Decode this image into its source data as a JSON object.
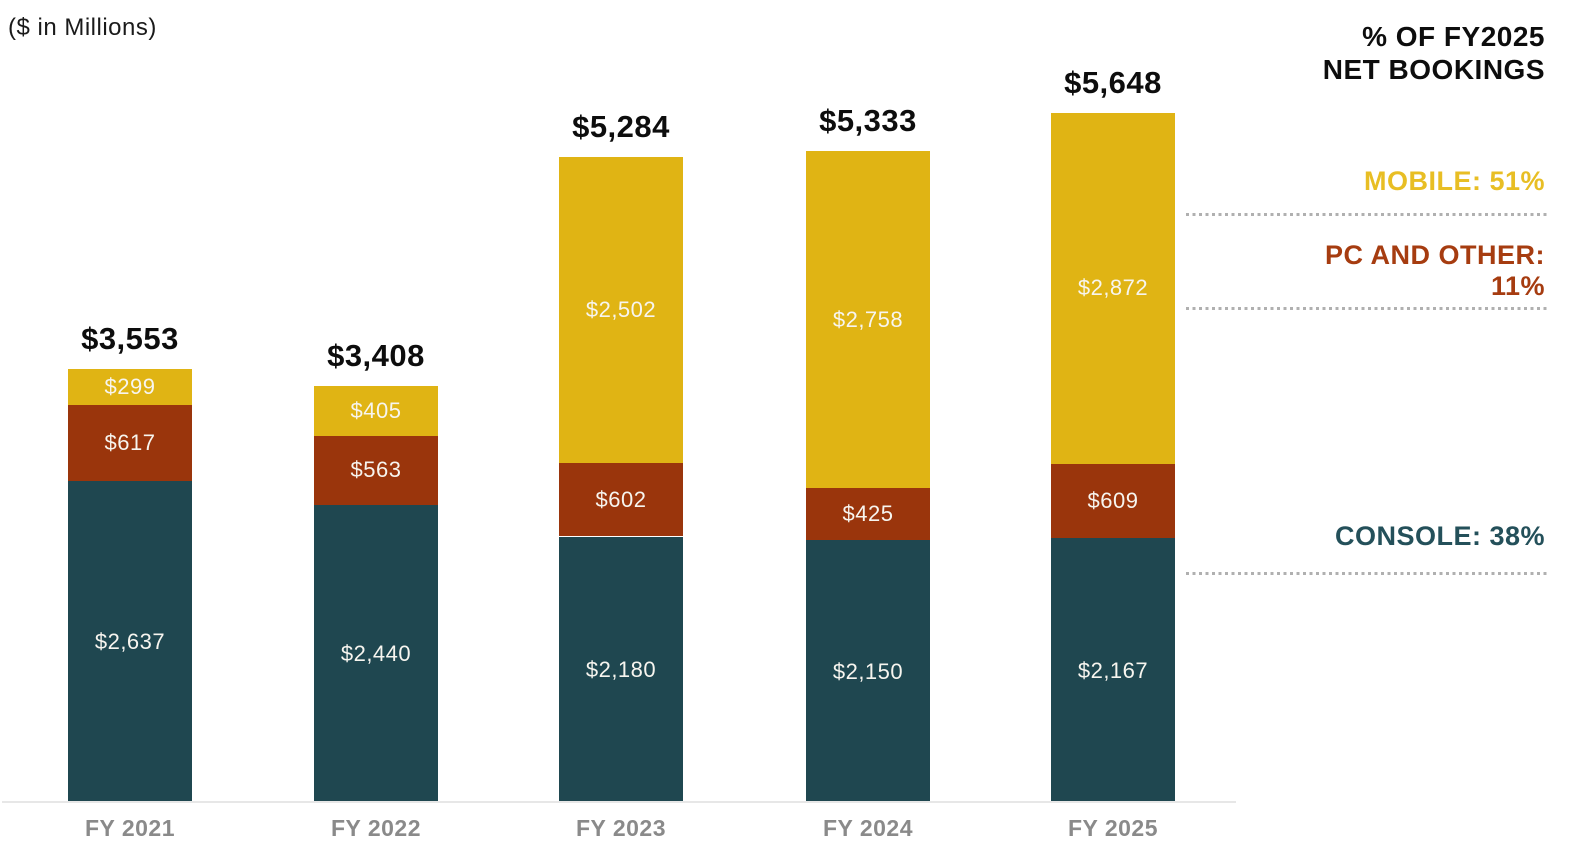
{
  "note": "($ in Millions)",
  "legend": {
    "title_line1": "% OF FY2025",
    "title_line2": "NET BOOKINGS",
    "items": [
      {
        "id": "mobile",
        "label": "MOBILE: 51%",
        "color": "#e8be24"
      },
      {
        "id": "pc",
        "label": "PC AND OTHER: 11%",
        "color": "#a63c10"
      },
      {
        "id": "console",
        "label": "CONSOLE: 38%",
        "color": "#24505a"
      }
    ]
  },
  "chart_data": {
    "type": "bar",
    "stacked": true,
    "title": "($ in Millions)",
    "unit": "USD millions",
    "value_prefix": "$",
    "categories": [
      "FY 2021",
      "FY 2022",
      "FY 2023",
      "FY 2024",
      "FY 2025"
    ],
    "series": [
      {
        "name": "Console",
        "color": "#1f4750",
        "values": [
          2637,
          2440,
          2180,
          2150,
          2167
        ]
      },
      {
        "name": "PC and Other",
        "color": "#9a350c",
        "values": [
          617,
          563,
          602,
          425,
          609
        ]
      },
      {
        "name": "Mobile",
        "color": "#e0b414",
        "values": [
          299,
          405,
          2502,
          2758,
          2872
        ]
      }
    ],
    "totals": [
      3553,
      3408,
      5284,
      5333,
      5648
    ],
    "legend_position": "right",
    "grid": false,
    "axis_line": true
  }
}
